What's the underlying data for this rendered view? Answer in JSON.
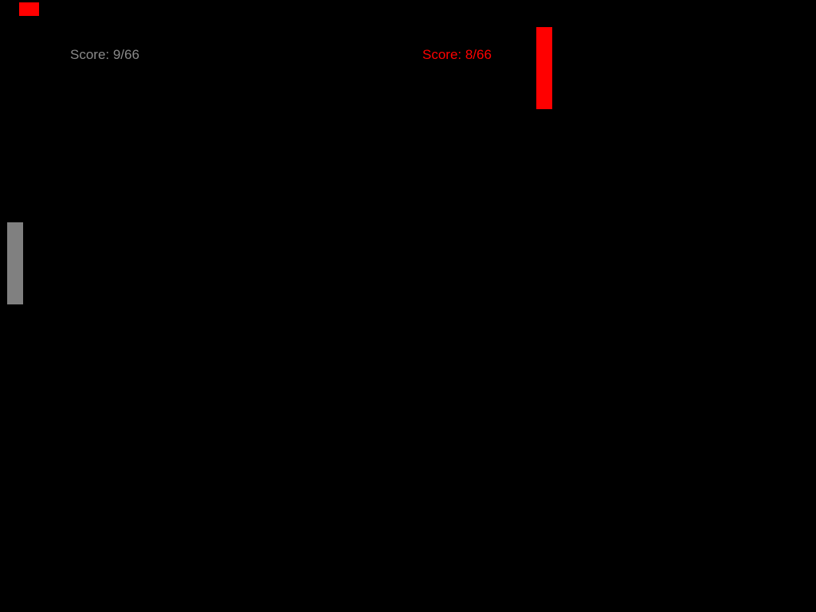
{
  "players": {
    "left": {
      "score_label": "Score: 9/66",
      "score": 9,
      "max_score": 66,
      "color": "#808080"
    },
    "right": {
      "score_label": "Score: 8/66",
      "score": 8,
      "max_score": 66,
      "color": "#ff0000"
    }
  },
  "ball": {
    "color": "#ff0000"
  },
  "background_color": "#000000"
}
